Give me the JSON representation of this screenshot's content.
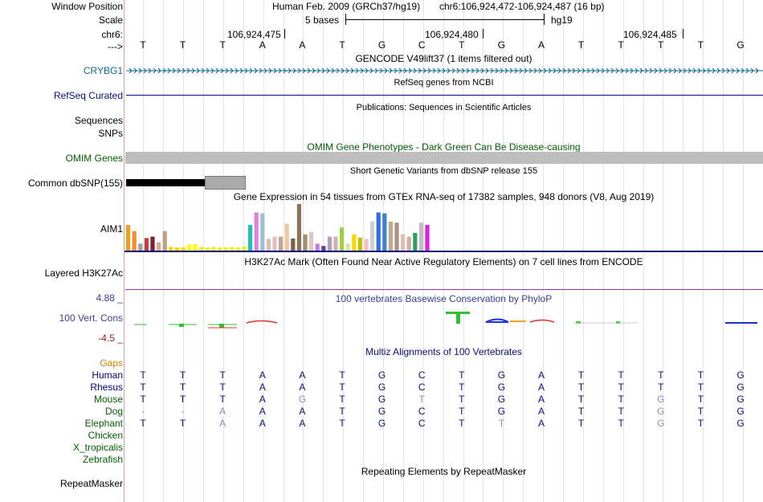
{
  "header": {
    "window_position_label": "Window Position",
    "scale_label": "Scale",
    "chrom_label": "chr6:",
    "arrow_label": "--->",
    "assembly": "Human Feb. 2009 (GRCh37/hg19)",
    "position": "chr6:106,924,472-106,924,487 (16 bp)",
    "scale_text": "5 bases",
    "scale_db": "hg19",
    "coords": [
      "106,924,475",
      "106,924,480",
      "106,924,485"
    ],
    "sequence": [
      "T",
      "T",
      "T",
      "A",
      "A",
      "T",
      "G",
      "C",
      "T",
      "G",
      "A",
      "T",
      "T",
      "T",
      "T",
      "G"
    ]
  },
  "tracks": {
    "gencode": {
      "title": "GENCODE V49lift37 (1 items filtered out)",
      "gene": "CRYBG1"
    },
    "refseq": {
      "title": "RefSeq genes from NCBI",
      "label": "RefSeq Curated"
    },
    "publications": {
      "title": "Publications: Sequences in Scientific Articles",
      "label_1": "Sequences",
      "label_2": "SNPs"
    },
    "omim": {
      "title": "OMIM Gene Phenotypes - Dark Green Can Be Disease-causing",
      "label": "OMIM Genes"
    },
    "dbsnp": {
      "title": "Short Genetic Variants from dbSNP release 155",
      "label": "Common dbSNP(155)"
    },
    "gtex": {
      "title": "Gene Expression in 54 tissues from GTEx RNA-seq of 17382 samples, 948 donors (V8, Aug 2019)",
      "label": "AIM1",
      "bars": [
        {
          "h": 0.55,
          "c": "#f0a020"
        },
        {
          "h": 0.42,
          "c": "#f09030"
        },
        {
          "h": 0.15,
          "c": "#a0a0a0"
        },
        {
          "h": 0.27,
          "c": "#c04040"
        },
        {
          "h": 0.3,
          "c": "#802030"
        },
        {
          "h": 0.18,
          "c": "#d0b090"
        },
        {
          "h": 0.42,
          "c": "#c0a080"
        },
        {
          "h": 0.08,
          "c": "#ffd700"
        },
        {
          "h": 0.07,
          "c": "#ffd700"
        },
        {
          "h": 0.07,
          "c": "#ffd700"
        },
        {
          "h": 0.13,
          "c": "#ffff00"
        },
        {
          "h": 0.14,
          "c": "#ffff00"
        },
        {
          "h": 0.08,
          "c": "#eeee30"
        },
        {
          "h": 0.07,
          "c": "#eeee30"
        },
        {
          "h": 0.08,
          "c": "#eeee30"
        },
        {
          "h": 0.07,
          "c": "#eeee30"
        },
        {
          "h": 0.07,
          "c": "#eeee30"
        },
        {
          "h": 0.08,
          "c": "#eeee30"
        },
        {
          "h": 0.07,
          "c": "#eeee30"
        },
        {
          "h": 0.09,
          "c": "#eeee30"
        },
        {
          "h": 0.55,
          "c": "#20c0c0"
        },
        {
          "h": 0.82,
          "c": "#e080e0"
        },
        {
          "h": 0.8,
          "c": "#a0c0d0"
        },
        {
          "h": 0.25,
          "c": "#d8c0b0"
        },
        {
          "h": 0.3,
          "c": "#e0c0c0"
        },
        {
          "h": 0.3,
          "c": "#c0a890"
        },
        {
          "h": 0.58,
          "c": "#f0c8a0"
        },
        {
          "h": 0.26,
          "c": "#806040"
        },
        {
          "h": 1.0,
          "c": "#8b7355"
        },
        {
          "h": 0.35,
          "c": "#a09070"
        },
        {
          "h": 0.4,
          "c": "#e0c8c0"
        },
        {
          "h": 0.15,
          "c": "#c080e0"
        },
        {
          "h": 0.1,
          "c": "#6040a0"
        },
        {
          "h": 0.3,
          "c": "#b0a0c0"
        },
        {
          "h": 0.3,
          "c": "#d0b0b0"
        },
        {
          "h": 0.5,
          "c": "#a0d040"
        },
        {
          "h": 0.15,
          "c": "#e0e0a0"
        },
        {
          "h": 0.35,
          "c": "#ffd700"
        },
        {
          "h": 0.28,
          "c": "#c0c000"
        },
        {
          "h": 0.25,
          "c": "#f0c0c0"
        },
        {
          "h": 0.63,
          "c": "#d0d0d0"
        },
        {
          "h": 0.82,
          "c": "#3070e0"
        },
        {
          "h": 0.8,
          "c": "#4080d0"
        },
        {
          "h": 0.62,
          "c": "#c0a890"
        },
        {
          "h": 0.6,
          "c": "#b09080"
        },
        {
          "h": 0.35,
          "c": "#e0c0b0"
        },
        {
          "h": 0.3,
          "c": "#d0b0a0"
        },
        {
          "h": 0.38,
          "c": "#30a060"
        },
        {
          "h": 0.6,
          "c": "#c0c0c0"
        },
        {
          "h": 0.55,
          "c": "#e020e0"
        }
      ]
    },
    "h3k27ac": {
      "title": "H3K27Ac Mark (Often Found Near Active Regulatory Elements) on 7 cell lines from ENCODE",
      "label": "Layered H3K27Ac"
    },
    "phylop": {
      "title": "100 vertebrates Basewise Conservation by PhyloP",
      "label": "100 Vert. Cons",
      "max": "4.88 _",
      "min": "-4.5 _"
    },
    "multiz": {
      "title": "Multiz Alignments of 100 Vertebrates",
      "gaps_label": "Gaps",
      "species": [
        {
          "name": "Human",
          "color": "#000080",
          "bases": [
            "T",
            "T",
            "T",
            "A",
            "A",
            "T",
            "G",
            "C",
            "T",
            "G",
            "A",
            "T",
            "T",
            "T",
            "T",
            "G"
          ],
          "dim": []
        },
        {
          "name": "Rhesus",
          "color": "#000080",
          "bases": [
            "T",
            "T",
            "T",
            "A",
            "A",
            "T",
            "G",
            "C",
            "T",
            "G",
            "A",
            "T",
            "T",
            "T",
            "T",
            "G"
          ],
          "dim": []
        },
        {
          "name": "Mouse",
          "color": "#006000",
          "bases": [
            "T",
            "T",
            "T",
            "A",
            "G",
            "T",
            "G",
            "T",
            "T",
            "G",
            "A",
            "T",
            "T",
            "G",
            "T",
            "G"
          ],
          "dim": [
            4,
            7,
            13
          ]
        },
        {
          "name": "Dog",
          "color": "#006000",
          "bases": [
            "-",
            "-",
            "A",
            "A",
            "A",
            "T",
            "G",
            "C",
            "T",
            "G",
            "A",
            "T",
            "T",
            "G",
            "T",
            "G"
          ],
          "dim": [
            0,
            1,
            2,
            13
          ]
        },
        {
          "name": "Elephant",
          "color": "#006000",
          "bases": [
            "T",
            "T",
            "A",
            "A",
            "A",
            "T",
            "G",
            "C",
            "T",
            "T",
            "A",
            "T",
            "T",
            "G",
            "T",
            "G"
          ],
          "dim": [
            2,
            9,
            13
          ]
        },
        {
          "name": "Chicken",
          "color": "#006000",
          "bases": [],
          "dim": []
        },
        {
          "name": "X_tropicalis",
          "color": "#006000",
          "bases": [],
          "dim": []
        },
        {
          "name": "Zebrafish",
          "color": "#006000",
          "bases": [],
          "dim": []
        }
      ]
    },
    "repeatmasker": {
      "title": "Repeating Elements by RepeatMasker",
      "label": "RepeatMasker"
    }
  },
  "colors": {
    "gencode": "#0c6c8c",
    "refseq": "#0c0c78",
    "omim": "#006000",
    "phylop_label": "#3c3c96",
    "phylop_min": "#9c1c1c",
    "h3k27ac_line": "#9030c0",
    "gaps": "#d08000"
  }
}
